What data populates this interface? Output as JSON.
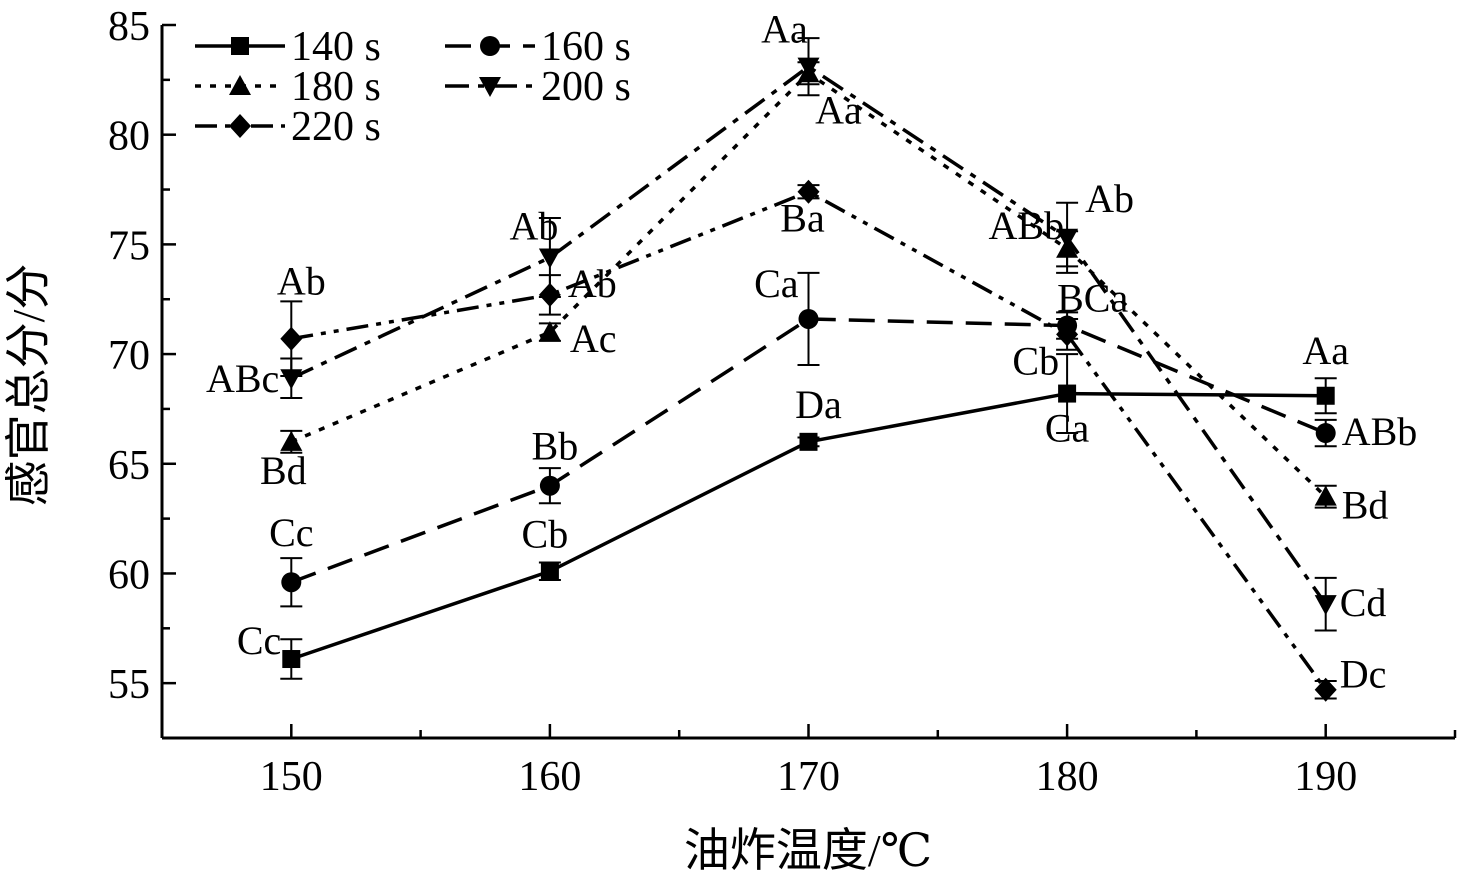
{
  "chart_data": {
    "type": "line",
    "xlabel": "油炸温度/℃",
    "ylabel": "感官总分/分",
    "x": [
      150,
      160,
      170,
      180,
      190
    ],
    "xlim": [
      145,
      195
    ],
    "ylim": [
      52.5,
      85
    ],
    "xticks": [
      150,
      160,
      170,
      180,
      190
    ],
    "yticks": [
      55,
      60,
      65,
      70,
      75,
      80,
      85
    ],
    "grid": false,
    "legend_position": "top-left",
    "series": [
      {
        "name": "140 s",
        "marker": "square",
        "line": "solid",
        "values": [
          56.1,
          60.1,
          66.0,
          68.2,
          68.1
        ],
        "errors": [
          0.9,
          0.4,
          0.2,
          1.8,
          0.8
        ],
        "labels": [
          "Cc",
          "Cb",
          "Da",
          "Ca",
          "Aa"
        ]
      },
      {
        "name": "160 s",
        "marker": "circle",
        "line": "dash",
        "values": [
          59.6,
          64.0,
          71.6,
          71.3,
          66.4
        ],
        "errors": [
          1.1,
          0.8,
          2.1,
          0.6,
          0.6
        ],
        "labels": [
          "Cc",
          "Bb",
          "Ca",
          "BCa",
          "ABb"
        ]
      },
      {
        "name": "180 s",
        "marker": "triangle-up",
        "line": "dot",
        "values": [
          66.0,
          71.0,
          82.8,
          74.8,
          63.5
        ],
        "errors": [
          0.5,
          0.4,
          0.5,
          0.8,
          0.5
        ],
        "labels": [
          "Bd",
          "Ac",
          "Aa",
          "ABb",
          "Bd"
        ]
      },
      {
        "name": "200 s",
        "marker": "triangle-down",
        "line": "dash-dot",
        "values": [
          68.9,
          74.4,
          83.1,
          75.3,
          58.6
        ],
        "errors": [
          0.9,
          1.8,
          1.3,
          1.6,
          1.2
        ],
        "labels": [
          "ABc",
          "Ab",
          "Aa",
          "Ab",
          "Cd"
        ]
      },
      {
        "name": "220 s",
        "marker": "diamond",
        "line": "dash-dot-dot",
        "values": [
          70.7,
          72.7,
          77.4,
          70.9,
          54.7
        ],
        "errors": [
          1.7,
          0.9,
          0.3,
          0.7,
          0.4
        ],
        "labels": [
          "Ab",
          "Ab",
          "Ba",
          "Cb",
          "Dc"
        ]
      }
    ]
  }
}
